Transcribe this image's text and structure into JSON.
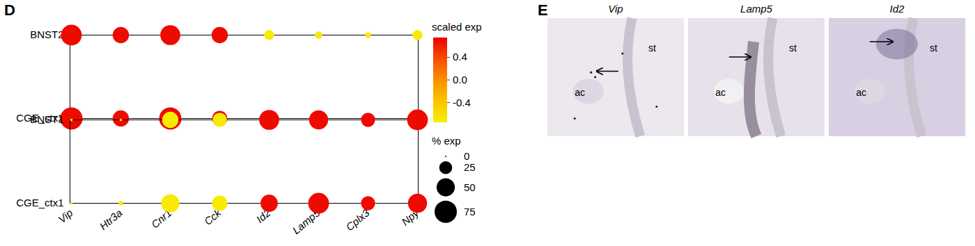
{
  "chart_data": {
    "type": "dot",
    "categories": [
      "Vip",
      "Htr3a",
      "Cnr1",
      "Cck",
      "Id2",
      "Lamp5",
      "Cplx3",
      "Npy"
    ],
    "rows": [
      "BNST2",
      "CGE_ctx2",
      "BNST1",
      "CGE_ctx1"
    ],
    "row_groups": [
      [
        "BNST2",
        "CGE_ctx2"
      ],
      [
        "BNST1",
        "CGE_ctx1"
      ]
    ],
    "pct_expressed": [
      [
        65,
        40,
        60,
        40,
        15,
        8,
        5,
        15
      ],
      [
        75,
        40,
        75,
        35,
        6,
        4,
        4,
        5
      ],
      [
        1,
        1,
        40,
        30,
        60,
        55,
        30,
        65
      ],
      [
        1,
        3,
        50,
        35,
        45,
        65,
        30,
        55
      ]
    ],
    "scaled_exp": [
      [
        0.7,
        0.7,
        0.7,
        0.7,
        -0.7,
        -0.7,
        -0.7,
        -0.7
      ],
      [
        0.7,
        0.7,
        0.7,
        0.7,
        -0.7,
        -0.7,
        -0.7,
        -0.7
      ],
      [
        -0.7,
        -0.7,
        -0.7,
        -0.7,
        0.7,
        0.7,
        0.7,
        0.7
      ],
      [
        -0.7,
        -0.7,
        -0.7,
        -0.7,
        0.7,
        0.7,
        0.7,
        0.7
      ]
    ],
    "color_label": "scaled exp",
    "color_lim": [
      -0.75,
      0.75
    ],
    "color_ticks": [
      0.4,
      {
        "value": 0,
        "label": "0.0"
      },
      -0.4
    ],
    "size_label": "% exp",
    "size_lim": [
      0,
      100
    ],
    "size_ticks": [
      0,
      25,
      50,
      75
    ]
  },
  "panel_labels": [
    "D",
    "E"
  ],
  "images": [
    {
      "title": "Vip",
      "labels": [
        "st",
        "ac"
      ]
    },
    {
      "title": "Lamp5",
      "labels": [
        "st",
        "ac"
      ]
    },
    {
      "title": "Id2",
      "labels": [
        "st",
        "ac"
      ]
    }
  ]
}
